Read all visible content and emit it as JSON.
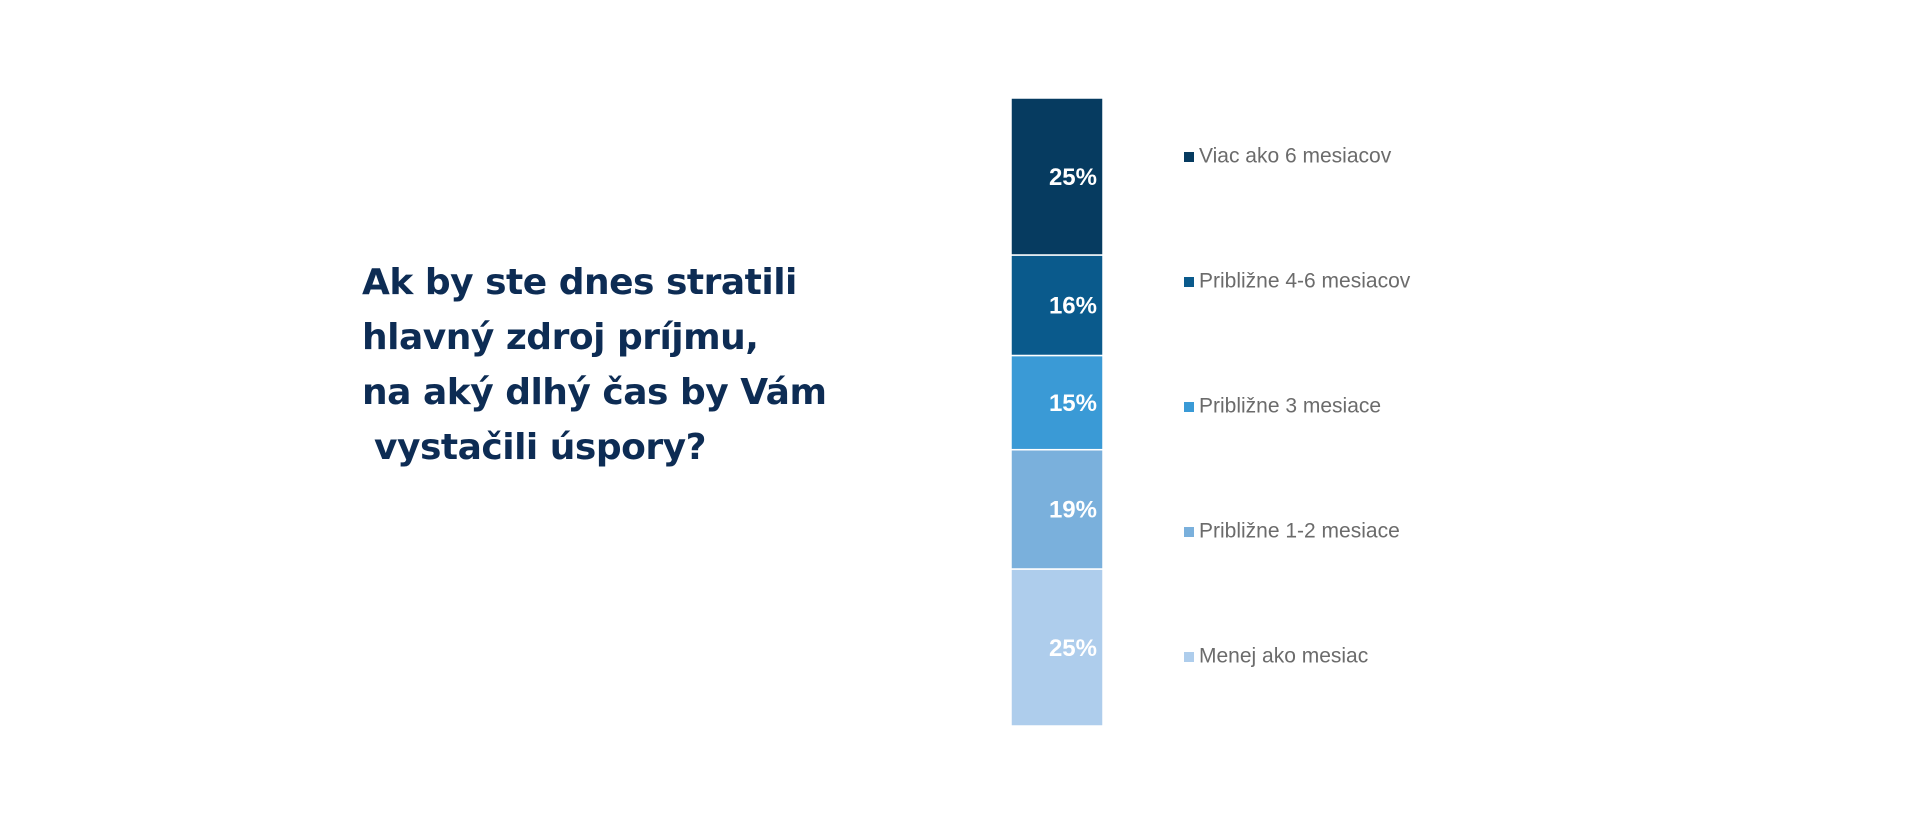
{
  "chart_data": {
    "type": "stacked_bar",
    "title_lines": [
      "Ak by ste dnes stratili",
      "hlavný zdroj príjmu,",
      "na aký dlhý čas by Vám",
      " vystačili úspory?"
    ],
    "ylim": [
      0,
      100
    ],
    "series": [
      {
        "name": "Menej ako mesiac",
        "color": "#aecdec",
        "values": [
          25
        ],
        "value_labels": [
          "25%"
        ]
      },
      {
        "name": "Približne 1-2 mesiace",
        "color": "#7ab0dc",
        "values": [
          19
        ],
        "value_labels": [
          "19%"
        ]
      },
      {
        "name": "Približne 3 mesiace",
        "color": "#3a9ad6",
        "values": [
          15
        ],
        "value_labels": [
          "15%"
        ]
      },
      {
        "name": "Približne 4-6 mesiacov",
        "color": "#0a5a8c",
        "values": [
          16
        ],
        "value_labels": [
          "16%"
        ]
      },
      {
        "name": "Viac ako 6 mesiacov",
        "color": "#063b60",
        "values": [
          25
        ],
        "value_labels": [
          "25%"
        ]
      }
    ]
  }
}
